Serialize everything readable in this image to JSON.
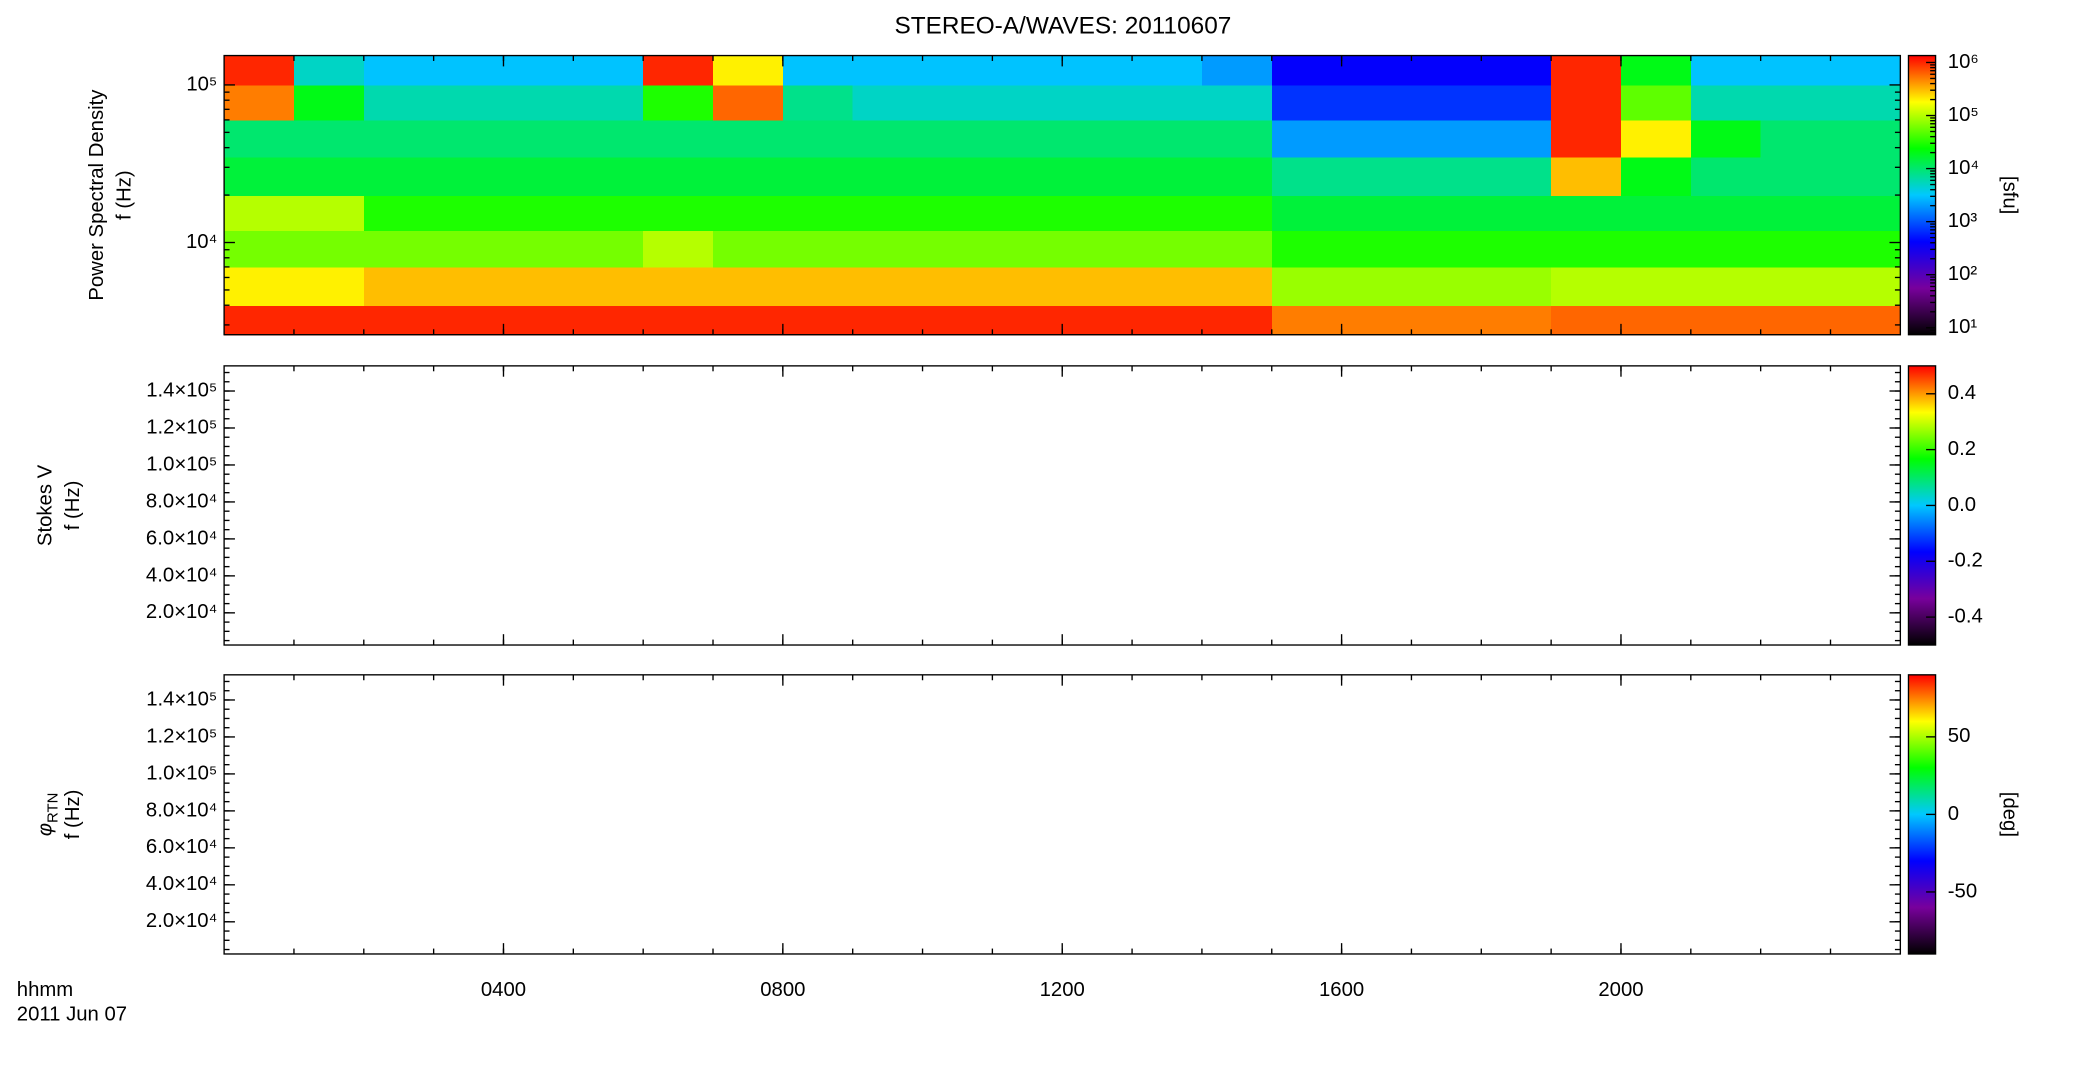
{
  "chart_data": [
    {
      "type": "heatmap",
      "title": "STEREO-A/WAVES: 20110607",
      "ylabel": "Power Spectral Density",
      "ylabel2": "f (Hz)",
      "ylog": true,
      "ylim": [
        2600,
        153600
      ],
      "yticks": [
        {
          "value": 10000,
          "label": "10⁴"
        },
        {
          "value": 100000,
          "label": "10⁵"
        }
      ],
      "xlim": [
        0,
        24
      ],
      "xticks": [
        4,
        8,
        12,
        16,
        20
      ],
      "xminor": 1,
      "x_edges": [
        0,
        1,
        2,
        3,
        4,
        5,
        6,
        7,
        8,
        9,
        10,
        11,
        12,
        13,
        14,
        15,
        16,
        17,
        18,
        19,
        20,
        21,
        22,
        23,
        24
      ],
      "y_edges": [
        2600,
        4000,
        7000,
        12000,
        20000,
        35000,
        60000,
        100000,
        153600
      ],
      "values": [
        [
          1000000,
          1000000,
          1000000,
          1000000,
          1000000,
          1000000,
          1000000,
          1000000,
          1000000,
          1000000,
          1000000,
          1000000,
          1000000,
          1000000,
          1000000,
          500000,
          500000,
          500000,
          500000,
          600000,
          600000,
          600000,
          600000,
          600000
        ],
        [
          200000,
          200000,
          300000,
          300000,
          300000,
          300000,
          300000,
          300000,
          300000,
          300000,
          300000,
          300000,
          300000,
          300000,
          300000,
          80000,
          80000,
          80000,
          80000,
          100000,
          100000,
          100000,
          100000,
          100000
        ],
        [
          60000,
          60000,
          60000,
          60000,
          60000,
          60000,
          100000,
          60000,
          60000,
          60000,
          60000,
          60000,
          60000,
          60000,
          60000,
          30000,
          30000,
          30000,
          30000,
          30000,
          30000,
          30000,
          30000,
          30000
        ],
        [
          100000,
          100000,
          30000,
          30000,
          30000,
          30000,
          30000,
          30000,
          30000,
          30000,
          30000,
          30000,
          30000,
          30000,
          30000,
          15000,
          15000,
          15000,
          15000,
          15000,
          15000,
          15000,
          15000,
          15000
        ],
        [
          15000,
          15000,
          15000,
          15000,
          15000,
          15000,
          15000,
          15000,
          15000,
          15000,
          15000,
          15000,
          15000,
          15000,
          15000,
          8000,
          8000,
          8000,
          8000,
          300000,
          20000,
          10000,
          10000,
          10000
        ],
        [
          10000,
          10000,
          10000,
          10000,
          10000,
          10000,
          10000,
          10000,
          10000,
          10000,
          10000,
          10000,
          10000,
          10000,
          10000,
          2000,
          2000,
          2000,
          2000,
          1000000,
          200000,
          20000,
          10000,
          10000
        ],
        [
          500000,
          20000,
          6000,
          6000,
          6000,
          6000,
          30000,
          600000,
          8000,
          5000,
          5000,
          5000,
          5000,
          5000,
          5000,
          700,
          700,
          700,
          700,
          1000000,
          50000,
          6000,
          6000,
          6000
        ],
        [
          1000000,
          5000,
          3000,
          3000,
          3000,
          3000,
          1000000,
          200000,
          3000,
          3000,
          3000,
          3000,
          3000,
          3000,
          2000,
          400,
          400,
          400,
          400,
          1000000,
          20000,
          3000,
          3000,
          3000
        ]
      ],
      "clog": true,
      "clim": [
        7.4,
        1350000
      ],
      "cticks": [
        {
          "value": 10,
          "label": "10¹"
        },
        {
          "value": 100,
          "label": "10²"
        },
        {
          "value": 1000,
          "label": "10³"
        },
        {
          "value": 10000,
          "label": "10⁴"
        },
        {
          "value": 100000,
          "label": "10⁵"
        },
        {
          "value": 1000000,
          "label": "10⁶"
        }
      ],
      "cbar_label": "[sfu]",
      "colormap": [
        "#000000",
        "#78009c",
        "#0000ff",
        "#00c8ff",
        "#00ff00",
        "#ffff00",
        "#ff0000"
      ]
    },
    {
      "type": "heatmap",
      "ylabel": "Stokes V",
      "ylabel2": "f (Hz)",
      "ylim": [
        2600,
        153600
      ],
      "yticks": [
        {
          "value": 20000,
          "label": "2.0×10⁴"
        },
        {
          "value": 40000,
          "label": "4.0×10⁴"
        },
        {
          "value": 60000,
          "label": "6.0×10⁴"
        },
        {
          "value": 80000,
          "label": "8.0×10⁴"
        },
        {
          "value": 100000,
          "label": "1.0×10⁵"
        },
        {
          "value": 120000,
          "label": "1.2×10⁵"
        },
        {
          "value": 140000,
          "label": "1.4×10⁵"
        }
      ],
      "yminor": 5000,
      "xlim": [
        0,
        24
      ],
      "xticks": [
        4,
        8,
        12,
        16,
        20
      ],
      "xminor": 1,
      "clim": [
        -0.5,
        0.5
      ],
      "cticks": [
        -0.4,
        -0.2,
        {
          "value": 0,
          "label": "0.0"
        },
        0.2,
        0.4
      ],
      "colormap": [
        "#000000",
        "#78009c",
        "#0000ff",
        "#00c8ff",
        "#00ff00",
        "#ffff00",
        "#ff0000"
      ]
    },
    {
      "type": "heatmap",
      "ylabel": "φ",
      "ylabel_sub": "RTN",
      "ylabel2": "f (Hz)",
      "ylim": [
        2600,
        153600
      ],
      "yticks": [
        {
          "value": 20000,
          "label": "2.0×10⁴"
        },
        {
          "value": 40000,
          "label": "4.0×10⁴"
        },
        {
          "value": 60000,
          "label": "6.0×10⁴"
        },
        {
          "value": 80000,
          "label": "8.0×10⁴"
        },
        {
          "value": 100000,
          "label": "1.0×10⁵"
        },
        {
          "value": 120000,
          "label": "1.2×10⁵"
        },
        {
          "value": 140000,
          "label": "1.4×10⁵"
        }
      ],
      "yminor": 5000,
      "xlim": [
        0,
        24
      ],
      "xticks": [
        {
          "value": 4,
          "label": "0400"
        },
        {
          "value": 8,
          "label": "0800"
        },
        {
          "value": 12,
          "label": "1200"
        },
        {
          "value": 16,
          "label": "1600"
        },
        {
          "value": 20,
          "label": "2000"
        }
      ],
      "xminor": 1,
      "xlabel": "hhmm",
      "date": "2011 Jun 07",
      "clim": [
        -90,
        90
      ],
      "cticks": [
        -50,
        0,
        50
      ],
      "cbar_label": "[deg]",
      "colormap": [
        "#000000",
        "#78009c",
        "#0000ff",
        "#00c8ff",
        "#00ff00",
        "#ffff00",
        "#ff0000"
      ]
    }
  ]
}
